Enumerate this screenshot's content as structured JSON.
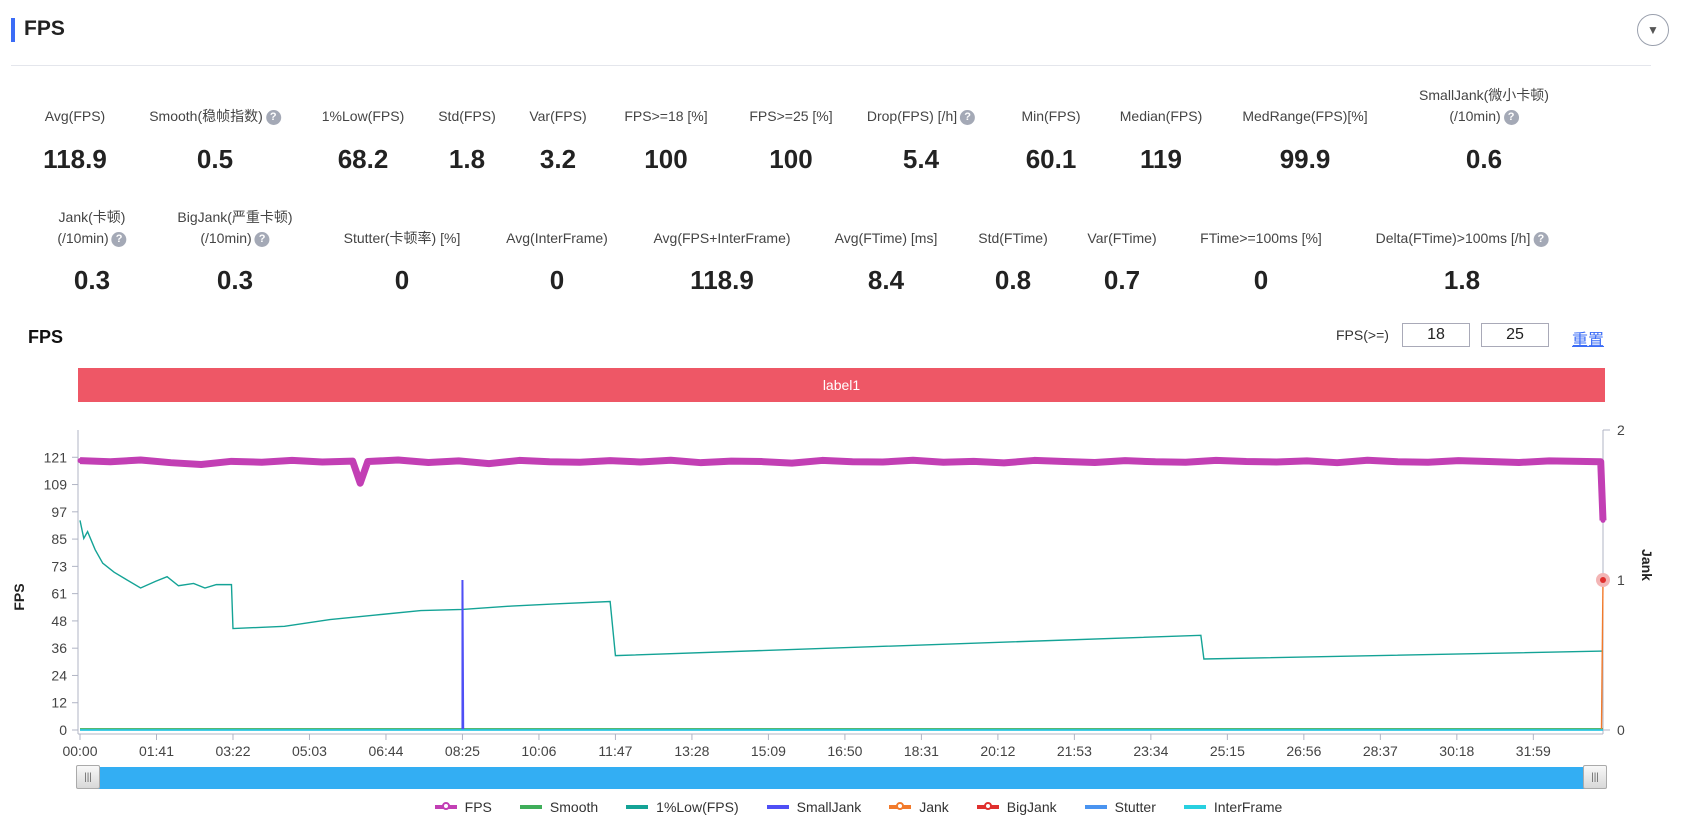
{
  "header": {
    "title": "FPS",
    "collapse_icon": "chevron-down-icon"
  },
  "stats_row1": [
    {
      "label": "Avg(FPS)",
      "value": "118.9",
      "help": false
    },
    {
      "label": "Smooth(稳帧指数)",
      "value": "0.5",
      "help": true
    },
    {
      "label": "1%Low(FPS)",
      "value": "68.2",
      "help": false
    },
    {
      "label": "Std(FPS)",
      "value": "1.8",
      "help": false
    },
    {
      "label": "Var(FPS)",
      "value": "3.2",
      "help": false
    },
    {
      "label": "FPS>=18 [%]",
      "value": "100",
      "help": false
    },
    {
      "label": "FPS>=25 [%]",
      "value": "100",
      "help": false
    },
    {
      "label": "Drop(FPS) [/h]",
      "value": "5.4",
      "help": true
    },
    {
      "label": "Min(FPS)",
      "value": "60.1",
      "help": false
    },
    {
      "label": "Median(FPS)",
      "value": "119",
      "help": false
    },
    {
      "label": "MedRange(FPS)[%]",
      "value": "99.9",
      "help": false
    },
    {
      "label": "SmallJank(微小卡顿)",
      "label2": "(/10min)",
      "value": "0.6",
      "help": true
    }
  ],
  "stats_row2": [
    {
      "label": "Jank(卡顿)",
      "label2": "(/10min)",
      "value": "0.3",
      "help": true
    },
    {
      "label": "BigJank(严重卡顿)",
      "label2": "(/10min)",
      "value": "0.3",
      "help": true
    },
    {
      "label": "Stutter(卡顿率) [%]",
      "value": "0",
      "help": false
    },
    {
      "label": "Avg(InterFrame)",
      "value": "0",
      "help": false
    },
    {
      "label": "Avg(FPS+InterFrame)",
      "value": "118.9",
      "help": false
    },
    {
      "label": "Avg(FTime) [ms]",
      "value": "8.4",
      "help": false
    },
    {
      "label": "Std(FTime)",
      "value": "0.8",
      "help": false
    },
    {
      "label": "Var(FTime)",
      "value": "0.7",
      "help": false
    },
    {
      "label": "FTime>=100ms [%]",
      "value": "0",
      "help": false
    },
    {
      "label": "Delta(FTime)>100ms [/h]",
      "value": "1.8",
      "help": true
    }
  ],
  "help_glyph": "?",
  "chart_section": {
    "title": "FPS",
    "threshold_label": "FPS(>=)",
    "threshold1": "18",
    "threshold2": "25",
    "reset_label": "重置",
    "label_bar": "label1",
    "label_bar_color": "#ee5766"
  },
  "chart_data": {
    "type": "line",
    "ylabel": "FPS",
    "y2label": "Jank",
    "ylim": [
      0,
      133.1
    ],
    "y2lim": [
      0,
      2
    ],
    "yticks": [
      "0",
      "12",
      "24",
      "36",
      "48",
      "61",
      "73",
      "85",
      "97",
      "109",
      "121"
    ],
    "y2ticks": [
      "0",
      "1",
      "2"
    ],
    "xticks": [
      "00:00",
      "01:41",
      "03:22",
      "05:03",
      "06:44",
      "08:25",
      "10:06",
      "11:47",
      "13:28",
      "15:09",
      "16:50",
      "18:31",
      "20:12",
      "21:53",
      "23:34",
      "25:15",
      "26:56",
      "28:37",
      "30:18",
      "31:59"
    ],
    "xlim": [
      "00:00",
      "33:31"
    ],
    "grid": false,
    "legend_position": "bottom",
    "series": [
      {
        "name": "FPS",
        "color": "#c23fb4",
        "axis": "left",
        "marker": "circle",
        "points": [
          [
            "00:00",
            119.5
          ],
          [
            "00:40",
            119
          ],
          [
            "01:20",
            119.8
          ],
          [
            "02:00",
            118.6
          ],
          [
            "02:40",
            117.8
          ],
          [
            "03:20",
            119.2
          ],
          [
            "04:00",
            118.8
          ],
          [
            "04:40",
            119.6
          ],
          [
            "05:20",
            118.9
          ],
          [
            "06:00",
            119.3
          ],
          [
            "06:10",
            109.5
          ],
          [
            "06:20",
            119.1
          ],
          [
            "07:00",
            119.8
          ],
          [
            "07:40",
            118.7
          ],
          [
            "08:20",
            119.4
          ],
          [
            "09:00",
            118.2
          ],
          [
            "09:40",
            119.6
          ],
          [
            "10:20",
            119
          ],
          [
            "11:00",
            118.8
          ],
          [
            "11:40",
            119.5
          ],
          [
            "12:20",
            118.9
          ],
          [
            "13:00",
            119.7
          ],
          [
            "13:40",
            118.6
          ],
          [
            "14:20",
            119.3
          ],
          [
            "15:00",
            119.1
          ],
          [
            "15:40",
            118.4
          ],
          [
            "16:20",
            119.6
          ],
          [
            "17:00",
            119
          ],
          [
            "17:40",
            118.9
          ],
          [
            "18:20",
            119.7
          ],
          [
            "19:00",
            118.8
          ],
          [
            "19:40",
            119.2
          ],
          [
            "20:20",
            118.5
          ],
          [
            "21:00",
            119.6
          ],
          [
            "21:40",
            119.1
          ],
          [
            "22:20",
            118.7
          ],
          [
            "23:00",
            119.5
          ],
          [
            "23:40",
            119
          ],
          [
            "24:20",
            118.8
          ],
          [
            "25:00",
            119.6
          ],
          [
            "25:40",
            119.1
          ],
          [
            "26:20",
            118.9
          ],
          [
            "27:00",
            119.4
          ],
          [
            "27:40",
            118.6
          ],
          [
            "28:20",
            119.7
          ],
          [
            "29:00",
            119
          ],
          [
            "29:40",
            118.8
          ],
          [
            "30:20",
            119.5
          ],
          [
            "31:00",
            119.1
          ],
          [
            "31:40",
            118.7
          ],
          [
            "32:20",
            119.4
          ],
          [
            "33:00",
            119.2
          ],
          [
            "33:28",
            119
          ],
          [
            "33:31",
            93
          ]
        ]
      },
      {
        "name": "Smooth",
        "color": "#3fae5a",
        "axis": "left",
        "points": [
          [
            "00:00",
            0.5
          ],
          [
            "33:31",
            0.5
          ]
        ]
      },
      {
        "name": "1%Low(FPS)",
        "color": "#14a396",
        "axis": "left",
        "points": [
          [
            "00:00",
            93
          ],
          [
            "00:05",
            85
          ],
          [
            "00:10",
            88
          ],
          [
            "00:20",
            80
          ],
          [
            "00:30",
            74
          ],
          [
            "00:45",
            70
          ],
          [
            "01:00",
            67
          ],
          [
            "01:20",
            63
          ],
          [
            "01:40",
            66
          ],
          [
            "01:55",
            68
          ],
          [
            "02:10",
            64
          ],
          [
            "02:30",
            65
          ],
          [
            "02:45",
            63
          ],
          [
            "03:00",
            64.5
          ],
          [
            "03:20",
            64.5
          ],
          [
            "03:22",
            45
          ],
          [
            "04:30",
            46
          ],
          [
            "05:30",
            49
          ],
          [
            "06:30",
            51
          ],
          [
            "07:30",
            53
          ],
          [
            "08:25",
            53.5
          ],
          [
            "09:30",
            55
          ],
          [
            "10:30",
            56
          ],
          [
            "11:40",
            57
          ],
          [
            "11:47",
            33
          ],
          [
            "24:40",
            42
          ],
          [
            "24:44",
            31.5
          ],
          [
            "33:31",
            35
          ]
        ]
      },
      {
        "name": "SmallJank",
        "color": "#4f4ff5",
        "axis": "right",
        "points": [
          [
            "08:25",
            0
          ],
          [
            "08:25",
            1
          ],
          [
            "08:26",
            0
          ]
        ]
      },
      {
        "name": "Jank",
        "color": "#f27a2b",
        "axis": "right",
        "marker": "circle",
        "points": [
          [
            "33:29",
            0
          ],
          [
            "33:31",
            1
          ]
        ]
      },
      {
        "name": "BigJank",
        "color": "#e0302e",
        "axis": "right",
        "marker": "circle",
        "points": [
          [
            "33:31",
            1
          ]
        ]
      },
      {
        "name": "Stutter",
        "color": "#4a94f0",
        "axis": "right",
        "points": [
          [
            "00:00",
            0
          ],
          [
            "33:31",
            0
          ]
        ]
      },
      {
        "name": "InterFrame",
        "color": "#28d0e0",
        "axis": "left",
        "points": [
          [
            "00:00",
            0
          ],
          [
            "33:31",
            0
          ]
        ]
      }
    ]
  },
  "slider": {
    "range": [
      0,
      100
    ],
    "handle_glyph": "|||"
  }
}
